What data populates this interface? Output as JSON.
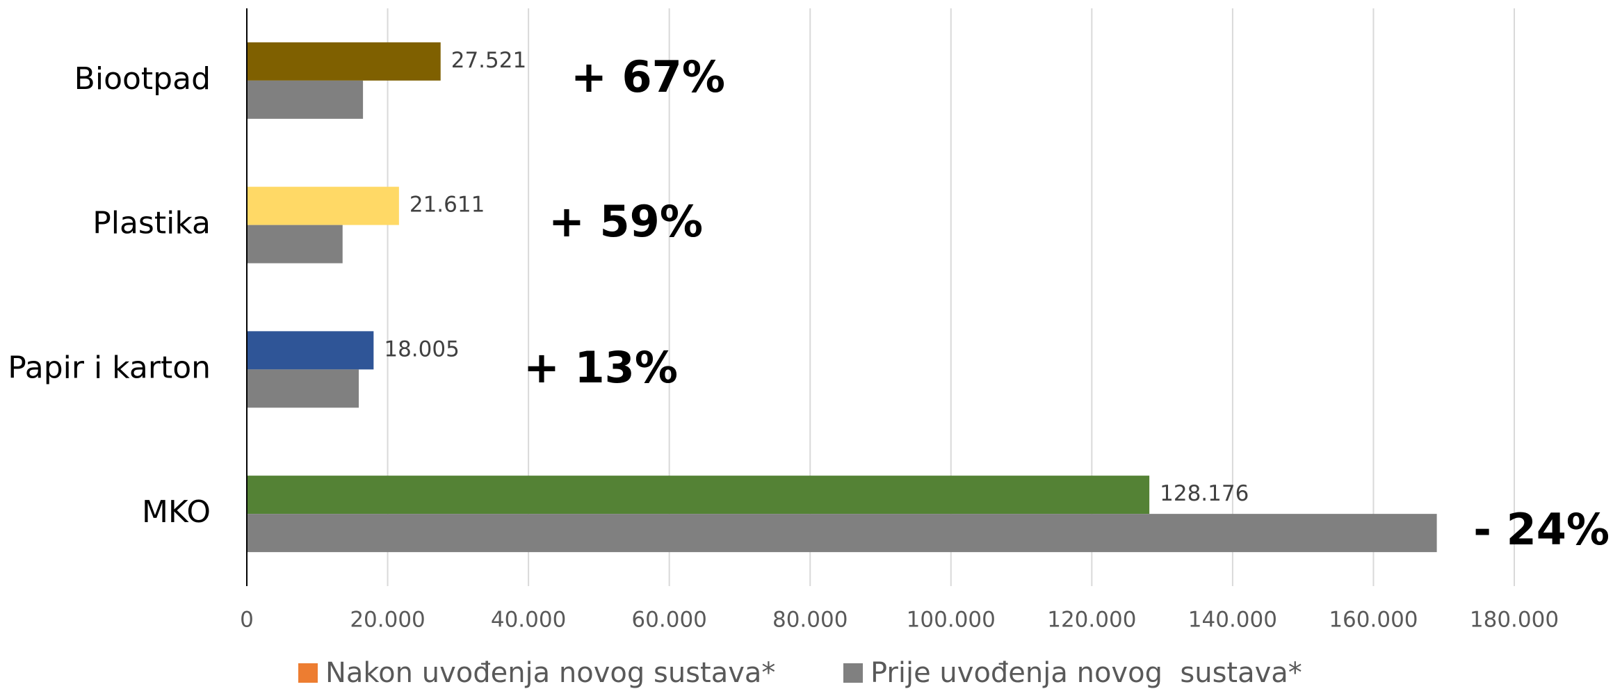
{
  "chart_data": {
    "type": "hbar",
    "categories": [
      "Biootpad",
      "Plastika",
      "Papir i karton",
      "MKO"
    ],
    "series": [
      {
        "name": "Nakon uvođenja novog sustava*",
        "color": "#ed7d31",
        "colors": [
          "#7f6000",
          "#ffd966",
          "#2f5597",
          "#548235"
        ],
        "values": [
          27521,
          21611,
          18005,
          128176
        ],
        "value_labels": [
          "27.521",
          "21.611",
          "18.005",
          "128.176"
        ]
      },
      {
        "name": "Prije uvođenja novog  sustava*",
        "color": "#808080",
        "values": [
          16500,
          13600,
          15900,
          169000
        ]
      }
    ],
    "annotations": [
      "+ 67%",
      "+ 59%",
      "+ 13%",
      "- 24%"
    ],
    "xlim": [
      0,
      180000
    ],
    "xticks": [
      0,
      {
        "value": 20000,
        "label": "20.000"
      },
      {
        "value": 40000,
        "label": "40.000"
      },
      {
        "value": 60000,
        "label": "60.000"
      },
      {
        "value": 80000,
        "label": "80.000"
      },
      {
        "value": 100000,
        "label": "100.000"
      },
      {
        "value": 120000,
        "label": "120.000"
      },
      {
        "value": 140000,
        "label": "140.000"
      },
      {
        "value": 160000,
        "label": "160.000"
      },
      {
        "value": 180000,
        "label": "180.000"
      }
    ],
    "grid": true,
    "legend": "bottom"
  }
}
